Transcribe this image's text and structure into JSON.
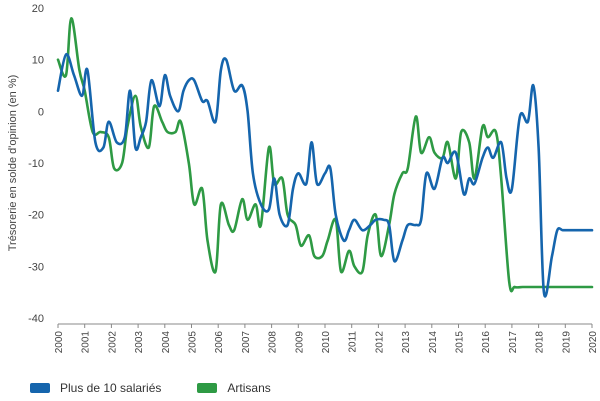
{
  "chart_data": {
    "type": "line",
    "title": "",
    "xlabel": "",
    "ylabel": "Trésorerie en solde d'opinion (en %)",
    "ylim": [
      -40,
      20
    ],
    "yticks": [
      20,
      10,
      0,
      -10,
      -20,
      -30,
      -40
    ],
    "xlim": [
      2000,
      2020
    ],
    "xticks": [
      "2000",
      "2001",
      "2002",
      "2003",
      "2004",
      "2005",
      "2006",
      "2007",
      "2008",
      "2009",
      "2010",
      "2011",
      "2012",
      "2013",
      "2014",
      "2015",
      "2016",
      "2017",
      "2018",
      "2019",
      "2020"
    ],
    "grid": false,
    "legend_position": "bottom",
    "series": [
      {
        "name": "Plus de 10 salariés",
        "color": "#1565ad",
        "x": [
          2000.0,
          2000.3,
          2000.6,
          2000.9,
          2001.1,
          2001.4,
          2001.7,
          2001.9,
          2002.2,
          2002.5,
          2002.7,
          2002.9,
          2003.1,
          2003.3,
          2003.5,
          2003.8,
          2004.0,
          2004.2,
          2004.5,
          2004.7,
          2004.9,
          2005.1,
          2005.4,
          2005.6,
          2005.9,
          2006.1,
          2006.3,
          2006.6,
          2006.9,
          2007.1,
          2007.3,
          2007.6,
          2007.9,
          2008.1,
          2008.3,
          2008.6,
          2008.8,
          2009.0,
          2009.3,
          2009.5,
          2009.7,
          2010.0,
          2010.2,
          2010.4,
          2010.7,
          2010.9,
          2011.1,
          2011.4,
          2011.7,
          2011.9,
          2012.2,
          2012.4,
          2012.6,
          2012.9,
          2013.1,
          2013.4,
          2013.6,
          2013.8,
          2014.1,
          2014.4,
          2014.6,
          2014.9,
          2015.2,
          2015.4,
          2015.6,
          2015.9,
          2016.1,
          2016.3,
          2016.6,
          2016.8,
          2017.0,
          2017.3,
          2017.6,
          2017.8,
          2018.0,
          2018.2,
          2018.5,
          2018.7,
          2018.9,
          2019.1,
          2019.4,
          2019.5,
          2019.7,
          2019.85,
          2020.0
        ],
        "y": [
          4,
          11,
          7,
          3,
          8,
          -6,
          -7,
          -2,
          -6,
          -5,
          4,
          -7,
          -5,
          -2,
          6,
          1,
          7,
          3,
          0,
          4,
          6,
          6,
          2,
          2,
          -2,
          8,
          10,
          4,
          5,
          0,
          -12,
          -18,
          -19,
          -13,
          -20,
          -22,
          -15,
          -12,
          -14,
          -6,
          -14,
          -12,
          -11,
          -20,
          -25,
          -23,
          -21,
          -23,
          -22,
          -21,
          -21,
          -22,
          -29,
          -25,
          -22,
          -22,
          -21,
          -12,
          -15,
          -9,
          -10,
          -8,
          -16,
          -13,
          -14,
          -9,
          -7,
          -9,
          -6,
          -13,
          -15,
          -1,
          -2,
          5,
          -7,
          -35,
          -28,
          -23,
          -23,
          -23,
          -23,
          -23,
          -23,
          -23,
          -23
        ]
      },
      {
        "name": "Artisans",
        "color": "#2e9a44",
        "x": [
          2000.0,
          2000.3,
          2000.5,
          2000.8,
          2001.0,
          2001.3,
          2001.6,
          2001.9,
          2002.1,
          2002.4,
          2002.6,
          2002.9,
          2003.1,
          2003.4,
          2003.6,
          2003.9,
          2004.1,
          2004.4,
          2004.6,
          2004.9,
          2005.1,
          2005.4,
          2005.6,
          2005.9,
          2006.1,
          2006.4,
          2006.6,
          2006.9,
          2007.1,
          2007.4,
          2007.6,
          2007.9,
          2008.1,
          2008.4,
          2008.6,
          2008.9,
          2009.1,
          2009.4,
          2009.6,
          2009.9,
          2010.1,
          2010.4,
          2010.6,
          2010.9,
          2011.1,
          2011.4,
          2011.6,
          2011.9,
          2012.1,
          2012.4,
          2012.6,
          2012.9,
          2013.1,
          2013.4,
          2013.6,
          2013.9,
          2014.1,
          2014.4,
          2014.6,
          2014.9,
          2015.1,
          2015.4,
          2015.6,
          2015.9,
          2016.1,
          2016.4,
          2016.6,
          2016.9,
          2017.1,
          2017.4,
          2017.6,
          2017.9,
          2018.1,
          2018.4,
          2018.6,
          2018.9,
          2019.1,
          2019.4,
          2019.6,
          2019.85,
          2020.0
        ],
        "y": [
          10,
          7,
          18,
          8,
          4,
          -4,
          -4,
          -5,
          -11,
          -10,
          -3,
          3,
          -3,
          -7,
          1,
          -2,
          -4,
          -4,
          -2,
          -10,
          -18,
          -15,
          -25,
          -31,
          -18,
          -22,
          -23,
          -17,
          -21,
          -18,
          -22,
          -7,
          -14,
          -13,
          -20,
          -22,
          -26,
          -24,
          -28,
          -28,
          -25,
          -21,
          -31,
          -27,
          -30,
          -31,
          -24,
          -20,
          -28,
          -22,
          -16,
          -12,
          -11,
          -1,
          -8,
          -5,
          -8,
          -9,
          -6,
          -13,
          -4,
          -6,
          -13,
          -3,
          -5,
          -4,
          -13,
          -33,
          -34,
          -34,
          -34,
          -34,
          -34,
          -34,
          -34,
          -34,
          -34,
          -34,
          -34,
          -34,
          -34
        ]
      }
    ]
  }
}
